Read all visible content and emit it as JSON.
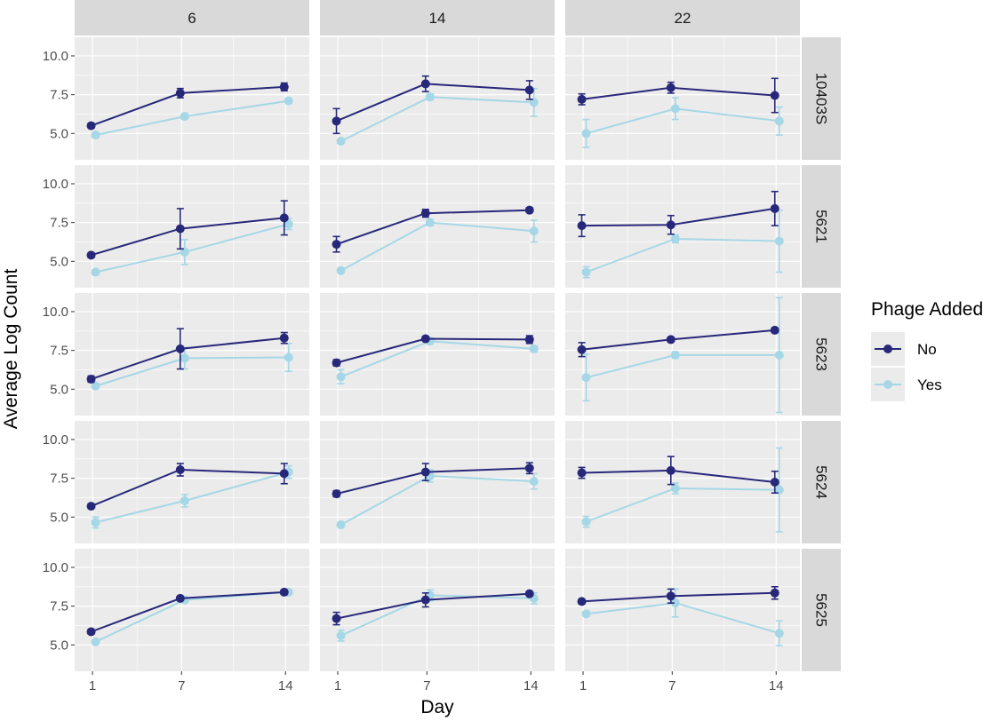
{
  "chart_data": {
    "type": "line",
    "facet_cols": [
      "6",
      "14",
      "22"
    ],
    "facet_rows": [
      "10403S",
      "5621",
      "5623",
      "5624",
      "5625"
    ],
    "x": [
      1,
      7,
      14
    ],
    "x_ticks": [
      "1",
      "7",
      "14"
    ],
    "y_ticks": [
      "5.0",
      "7.5",
      "10.0"
    ],
    "y_tick_values": [
      5.0,
      7.5,
      10.0
    ],
    "xlim": [
      -0.2,
      15.6
    ],
    "ylim": [
      3.3,
      11.2
    ],
    "xlabel": "Day",
    "ylabel": "Average Log Count",
    "legend": {
      "title": "Phage Added",
      "entries": [
        "No",
        "Yes"
      ]
    },
    "colors": {
      "No": "#28287a",
      "Yes": "#a6d7e6",
      "panel": "#ebebeb",
      "strip": "#d9d9d9",
      "grid": "#ffffff"
    },
    "panels": [
      [
        {
          "No": {
            "y": [
              5.5,
              7.6,
              8.0
            ],
            "err": [
              0.15,
              0.3,
              0.25
            ]
          },
          "Yes": {
            "y": [
              4.9,
              6.1,
              7.1
            ],
            "err": [
              0.1,
              0.15,
              0.15
            ]
          }
        },
        {
          "No": {
            "y": [
              5.8,
              8.2,
              7.8
            ],
            "err": [
              0.8,
              0.5,
              0.6
            ]
          },
          "Yes": {
            "y": [
              4.5,
              7.35,
              7.0
            ],
            "err": [
              0.15,
              0.2,
              0.9
            ]
          }
        },
        {
          "No": {
            "y": [
              7.2,
              7.95,
              7.45
            ],
            "err": [
              0.35,
              0.35,
              1.1
            ]
          },
          "Yes": {
            "y": [
              5.0,
              6.6,
              5.8
            ],
            "err": [
              0.9,
              0.7,
              0.9
            ]
          }
        }
      ],
      [
        {
          "No": {
            "y": [
              5.4,
              7.1,
              7.8
            ],
            "err": [
              0.15,
              1.3,
              1.1
            ]
          },
          "Yes": {
            "y": [
              4.3,
              5.6,
              7.4
            ],
            "err": [
              0.15,
              0.8,
              0.35
            ]
          }
        },
        {
          "No": {
            "y": [
              6.1,
              8.1,
              8.3
            ],
            "err": [
              0.5,
              0.25,
              0.15
            ]
          },
          "Yes": {
            "y": [
              4.4,
              7.5,
              6.95
            ],
            "err": [
              0.15,
              0.2,
              0.7
            ]
          }
        },
        {
          "No": {
            "y": [
              7.3,
              7.35,
              8.4
            ],
            "err": [
              0.7,
              0.6,
              1.1
            ]
          },
          "Yes": {
            "y": [
              4.3,
              6.45,
              6.3
            ],
            "err": [
              0.35,
              0.25,
              2.0
            ]
          }
        }
      ],
      [
        {
          "No": {
            "y": [
              5.65,
              7.6,
              8.3
            ],
            "err": [
              0.2,
              1.3,
              0.35
            ]
          },
          "Yes": {
            "y": [
              5.2,
              7.0,
              7.05
            ],
            "err": [
              0.15,
              0.7,
              0.9
            ]
          }
        },
        {
          "No": {
            "y": [
              6.7,
              8.25,
              8.2
            ],
            "err": [
              0.2,
              0.15,
              0.25
            ]
          },
          "Yes": {
            "y": [
              5.8,
              8.1,
              7.6
            ],
            "err": [
              0.45,
              0.2,
              0.2
            ]
          }
        },
        {
          "No": {
            "y": [
              7.55,
              8.2,
              8.8
            ],
            "err": [
              0.45,
              0.15,
              0.15
            ]
          },
          "Yes": {
            "y": [
              5.75,
              7.2,
              7.2
            ],
            "err": [
              1.5,
              0.2,
              3.7
            ]
          }
        }
      ],
      [
        {
          "No": {
            "y": [
              5.7,
              8.05,
              7.8
            ],
            "err": [
              0.15,
              0.4,
              0.65
            ]
          },
          "Yes": {
            "y": [
              4.65,
              6.05,
              7.9
            ],
            "err": [
              0.35,
              0.4,
              0.4
            ]
          }
        },
        {
          "No": {
            "y": [
              6.5,
              7.9,
              8.15
            ],
            "err": [
              0.2,
              0.55,
              0.35
            ]
          },
          "Yes": {
            "y": [
              4.5,
              7.65,
              7.3
            ],
            "err": [
              0.15,
              0.4,
              0.5
            ]
          }
        },
        {
          "No": {
            "y": [
              7.85,
              8.0,
              7.25
            ],
            "err": [
              0.35,
              0.9,
              0.7
            ]
          },
          "Yes": {
            "y": [
              4.7,
              6.85,
              6.75
            ],
            "err": [
              0.35,
              0.35,
              2.7
            ]
          }
        }
      ],
      [
        {
          "No": {
            "y": [
              5.85,
              8.0,
              8.4
            ],
            "err": [
              0.15,
              0.15,
              0.15
            ]
          },
          "Yes": {
            "y": [
              5.2,
              7.9,
              8.4
            ],
            "err": [
              0.15,
              0.15,
              0.15
            ]
          }
        },
        {
          "No": {
            "y": [
              6.7,
              7.9,
              8.3
            ],
            "err": [
              0.4,
              0.45,
              0.15
            ]
          },
          "Yes": {
            "y": [
              5.6,
              8.2,
              8.0
            ],
            "err": [
              0.35,
              0.35,
              0.35
            ]
          }
        },
        {
          "No": {
            "y": [
              7.8,
              8.15,
              8.35
            ],
            "err": [
              0.15,
              0.45,
              0.4
            ]
          },
          "Yes": {
            "y": [
              7.0,
              7.7,
              5.75
            ],
            "err": [
              0.15,
              0.9,
              0.8
            ]
          }
        }
      ]
    ]
  }
}
